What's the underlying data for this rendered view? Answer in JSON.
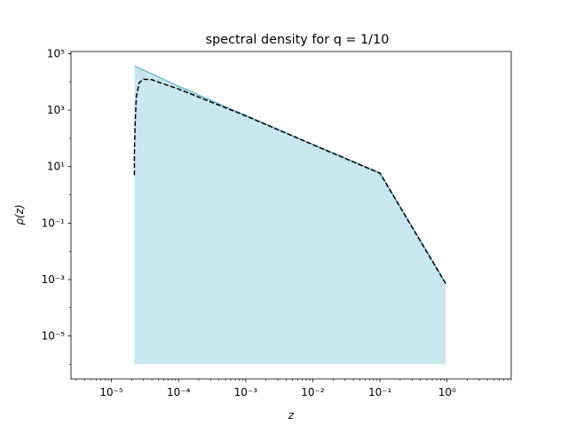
{
  "chart_data": {
    "type": "area",
    "title": "spectral density for q = 1/10",
    "xlabel": "z",
    "ylabel": "ρ(z)",
    "xscale": "log",
    "yscale": "log",
    "xlim": [
      2.5e-06,
      9.0
    ],
    "ylim": [
      3e-07,
      120000.0
    ],
    "x_ticks": [
      {
        "value": 1e-05,
        "label": "10⁻⁵"
      },
      {
        "value": 0.0001,
        "label": "10⁻⁴"
      },
      {
        "value": 0.001,
        "label": "10⁻³"
      },
      {
        "value": 0.01,
        "label": "10⁻²"
      },
      {
        "value": 0.1,
        "label": "10⁻¹"
      },
      {
        "value": 1,
        "label": "10⁰"
      }
    ],
    "y_ticks": [
      {
        "value": 1e-05,
        "label": "10⁻⁵"
      },
      {
        "value": 0.001,
        "label": "10⁻³"
      },
      {
        "value": 0.1,
        "label": "10⁻¹"
      },
      {
        "value": 10.0,
        "label": "10¹"
      },
      {
        "value": 1000.0,
        "label": "10³"
      },
      {
        "value": 100000.0,
        "label": "10⁵"
      }
    ],
    "grid": false,
    "colors": {
      "fill": "#add8e6",
      "line": "#6fb7cf",
      "dashed": "#000000"
    },
    "series": [
      {
        "style": "filled-area",
        "x": [
          2.2e-05,
          0.0001,
          0.001,
          0.01,
          0.1,
          0.95
        ],
        "y": [
          37000.0,
          7000.0,
          650.0,
          61.0,
          6.0,
          0.00075
        ],
        "baseline": 1e-06
      },
      {
        "style": "dashed",
        "x": [
          2.2e-05,
          2.2e-05,
          2.25e-05,
          2.35e-05,
          2.6e-05,
          3e-05,
          4e-05,
          6e-05,
          0.0001,
          0.001,
          0.01,
          0.1,
          0.95
        ],
        "y": [
          5.0,
          30.0,
          300.0,
          3000.0,
          9500.0,
          12500.0,
          12000.0,
          8500.0,
          5600.0,
          630.0,
          60.0,
          5.8,
          0.00072
        ]
      }
    ]
  }
}
